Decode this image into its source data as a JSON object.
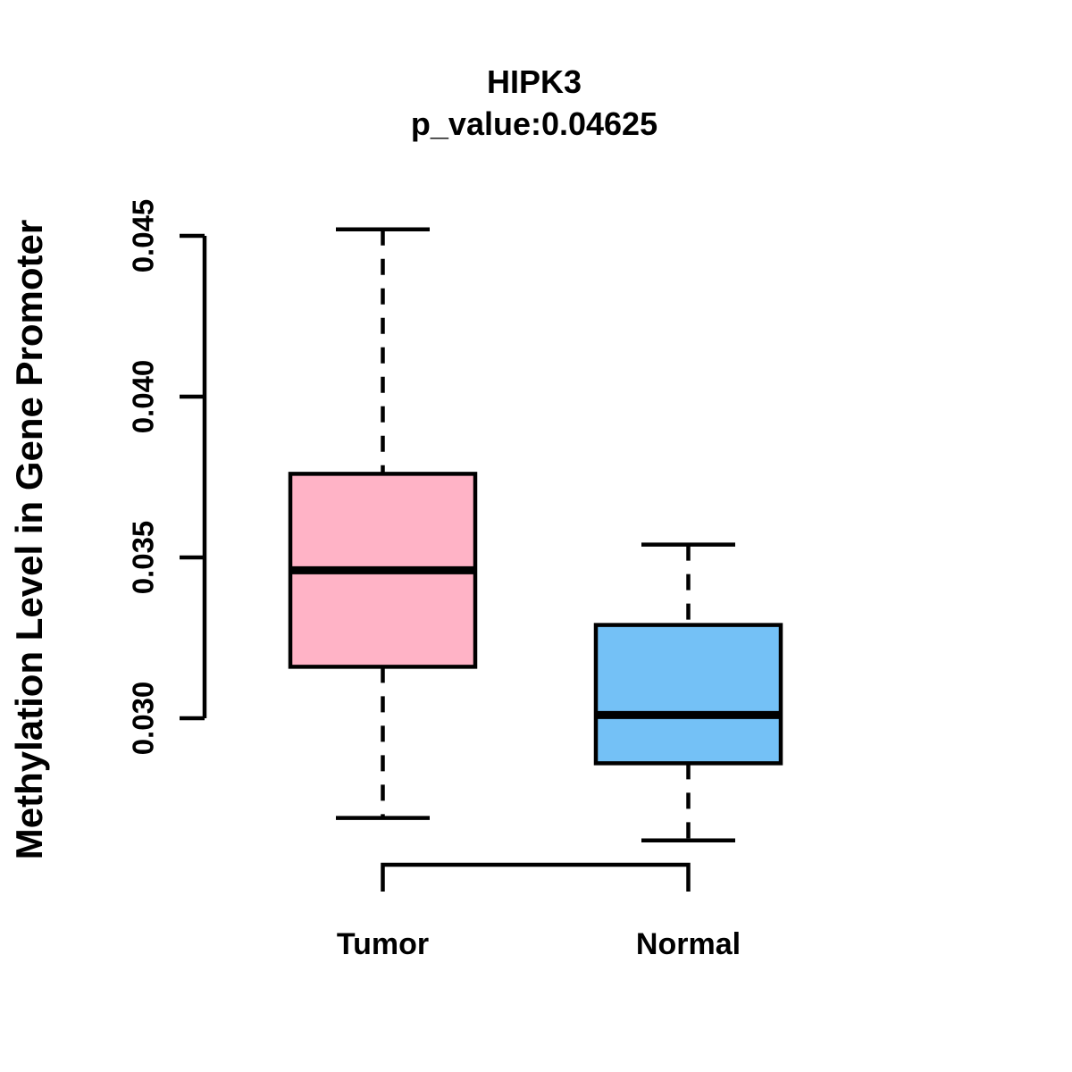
{
  "chart_data": {
    "type": "boxplot",
    "title": "HIPK3",
    "subtitle": "p_value:0.04625",
    "ylabel": "Methylation Level in Gene Promoter",
    "xlabel": "",
    "categories": [
      "Tumor",
      "Normal"
    ],
    "ytick_labels": [
      "0.030",
      "0.035",
      "0.040",
      "0.045"
    ],
    "ylim": [
      0.0262,
      0.0452
    ],
    "grid": false,
    "legend": "none",
    "series": [
      {
        "name": "Tumor",
        "fill_color": "#FFB3C6",
        "whisker_low": 0.0269,
        "q1": 0.0316,
        "median": 0.0346,
        "q3": 0.0376,
        "whisker_high": 0.0452
      },
      {
        "name": "Normal",
        "fill_color": "#74C1F6",
        "whisker_low": 0.0262,
        "q1": 0.0286,
        "median": 0.0301,
        "q3": 0.0329,
        "whisker_high": 0.0354
      }
    ],
    "stroke_color": "#000000",
    "background_color": "#ffffff"
  }
}
